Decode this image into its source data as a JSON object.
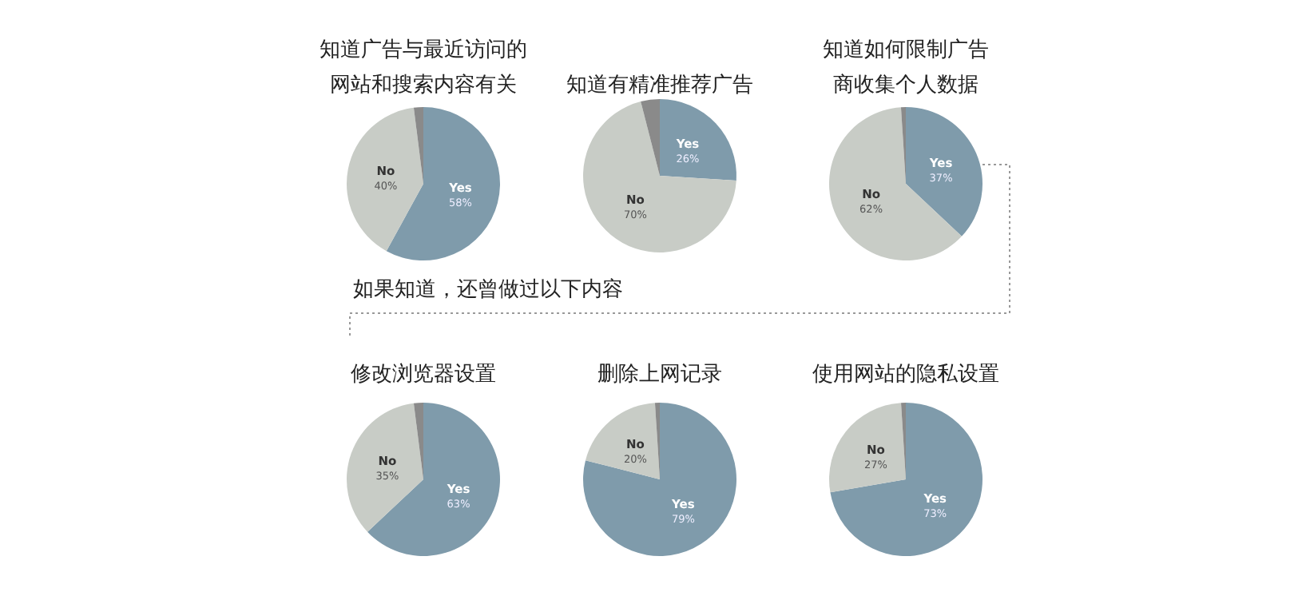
{
  "chart_data": [
    {
      "type": "pie",
      "title": "知道广告与最近访问的网站和搜索内容有关",
      "categories": [
        "Yes",
        "No",
        null
      ],
      "values": [
        58,
        40,
        2
      ],
      "value_labels": [
        "58%",
        "40%",
        null
      ],
      "colors": [
        "#7f9bab",
        "#c8ccc6",
        "#8a8a8a"
      ]
    },
    {
      "type": "pie",
      "title": "知道有精准推荐广告",
      "categories": [
        "Yes",
        "No",
        null
      ],
      "values": [
        26,
        70,
        4
      ],
      "value_labels": [
        "26%",
        "70%",
        null
      ],
      "colors": [
        "#7f9bab",
        "#c8ccc6",
        "#8a8a8a"
      ]
    },
    {
      "type": "pie",
      "title": "知道如何限制广告商收集个人数据",
      "categories": [
        "Yes",
        "No",
        null
      ],
      "values": [
        37,
        62,
        1
      ],
      "value_labels": [
        "37%",
        "62%",
        null
      ],
      "colors": [
        "#7f9bab",
        "#c8ccc6",
        "#8a8a8a"
      ]
    },
    {
      "type": "pie",
      "title": "修改浏览器设置",
      "categories": [
        "Yes",
        "No",
        null
      ],
      "values": [
        63,
        35,
        2
      ],
      "value_labels": [
        "63%",
        "35%",
        null
      ],
      "colors": [
        "#7f9bab",
        "#c8ccc6",
        "#8a8a8a"
      ],
      "annotations": [
        "如果知道，还曾做过以下内容"
      ]
    },
    {
      "type": "pie",
      "title": "删除上网记录",
      "categories": [
        "Yes",
        "No",
        null
      ],
      "values": [
        79,
        20,
        1
      ],
      "value_labels": [
        "79%",
        "20%",
        null
      ],
      "colors": [
        "#7f9bab",
        "#c8ccc6",
        "#8a8a8a"
      ]
    },
    {
      "type": "pie",
      "title": "使用网站的隐私设置",
      "categories": [
        "Yes",
        "No",
        null
      ],
      "values": [
        73,
        27,
        1
      ],
      "value_labels": [
        "73%",
        "27%",
        null
      ],
      "colors": [
        "#7f9bab",
        "#c8ccc6",
        "#8a8a8a"
      ]
    }
  ]
}
